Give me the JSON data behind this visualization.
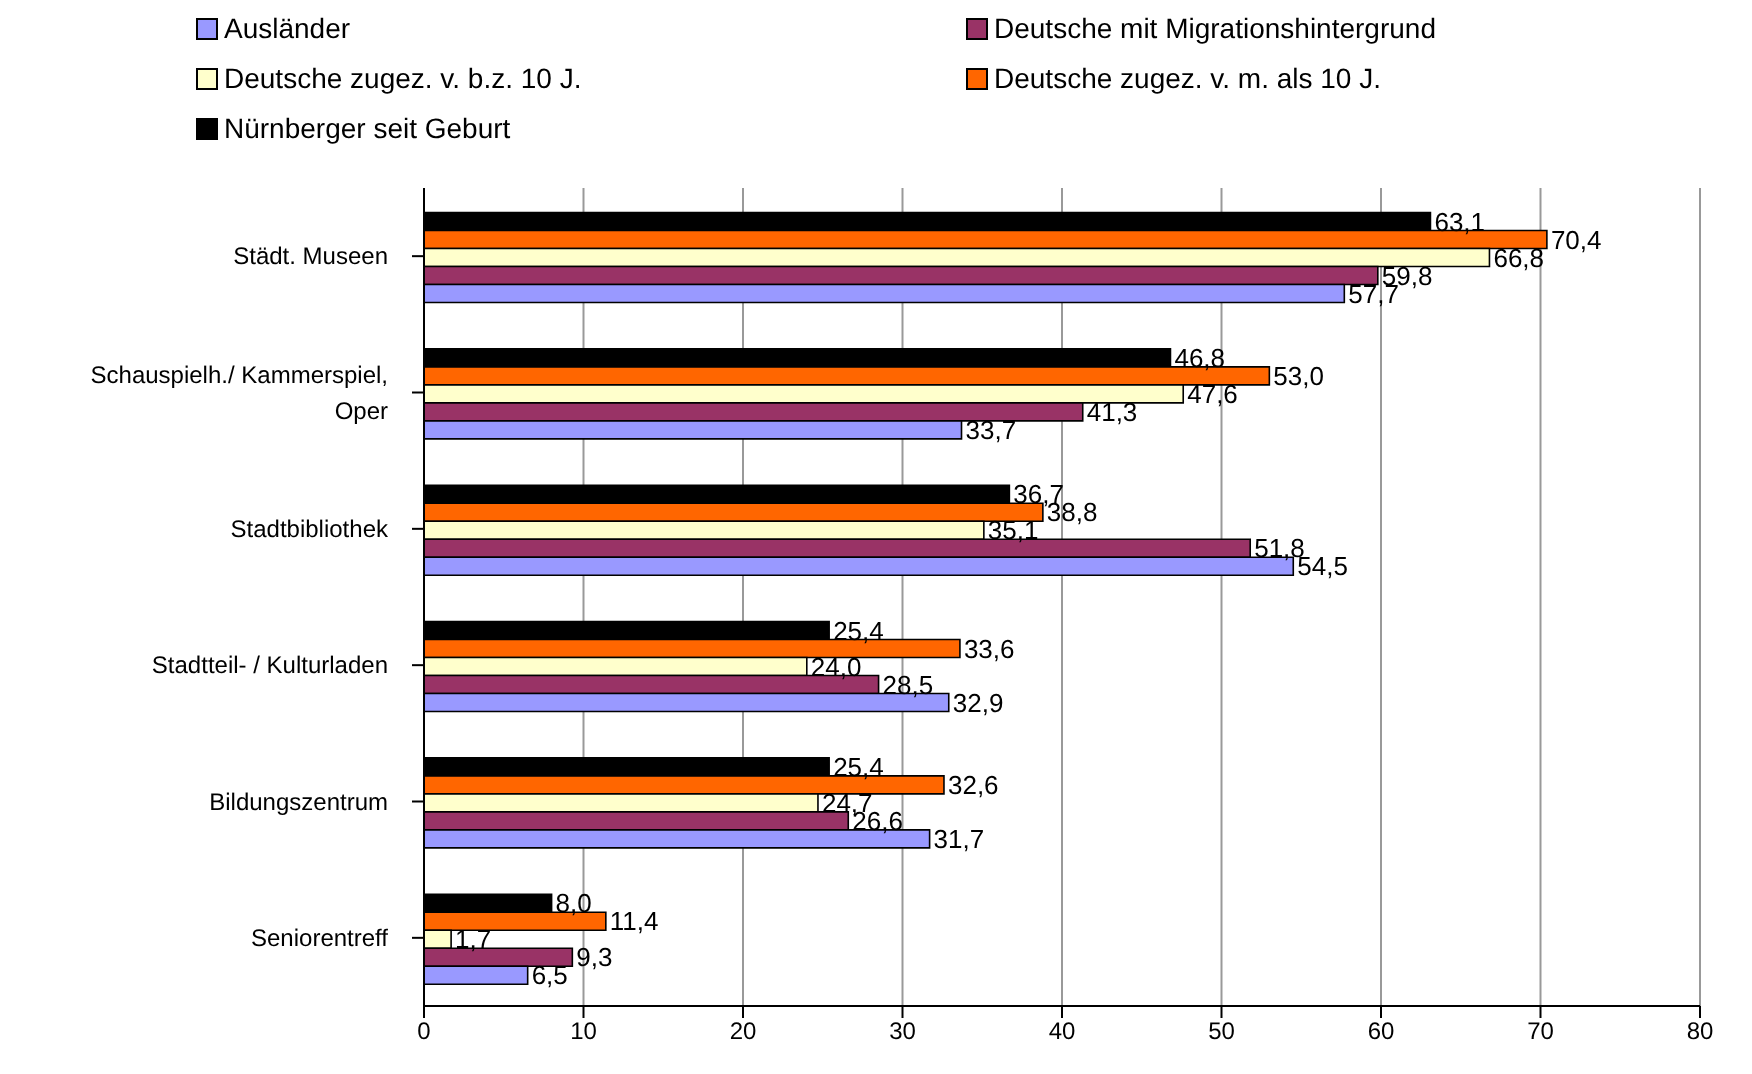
{
  "chart_data": {
    "type": "bar",
    "orientation": "horizontal",
    "categories": [
      "Städt. Museen",
      "Schauspielh./ Kammerspiel, Oper",
      "Stadtbibliothek",
      "Stadtteil- / Kulturladen",
      "Bildungszentrum",
      "Seniorentreff"
    ],
    "series": [
      {
        "name": "Ausländer",
        "color": "#9999ff",
        "values": [
          57.7,
          33.7,
          54.5,
          32.9,
          31.7,
          6.5
        ],
        "value_labels": [
          "57,7",
          "33,7",
          "54,5",
          "32,9",
          "31,7",
          "6,5"
        ]
      },
      {
        "name": "Deutsche mit Migrationshintergrund",
        "color": "#993366",
        "values": [
          59.8,
          41.3,
          51.8,
          28.5,
          26.6,
          9.3
        ],
        "value_labels": [
          "59,8",
          "41,3",
          "51,8",
          "28,5",
          "26,6",
          "9,3"
        ]
      },
      {
        "name": "Deutsche zugez. v. b.z. 10 J.",
        "color": "#ffffcc",
        "values": [
          66.8,
          47.6,
          35.1,
          24.0,
          24.7,
          1.7
        ],
        "value_labels": [
          "66,8",
          "47,6",
          "35,1",
          "24,0",
          "24,7",
          "1,7"
        ]
      },
      {
        "name": "Deutsche zugez. v. m. als 10 J.",
        "color": "#ff6600",
        "values": [
          70.4,
          53.0,
          38.8,
          33.6,
          32.6,
          11.4
        ],
        "value_labels": [
          "70,4",
          "53,0",
          "38,8",
          "33,6",
          "32,6",
          "11,4"
        ]
      },
      {
        "name": "Nürnberger seit Geburt",
        "color": "#000000",
        "values": [
          63.1,
          46.8,
          36.7,
          25.4,
          25.4,
          8.0
        ],
        "value_labels": [
          "63,1",
          "46,8",
          "36,7",
          "25,4",
          "25,4",
          "8,0"
        ]
      }
    ],
    "xlim": [
      0,
      80
    ],
    "xticks": [
      0,
      10,
      20,
      30,
      40,
      50,
      60,
      70,
      80
    ],
    "grid": "x",
    "legend": "top"
  }
}
